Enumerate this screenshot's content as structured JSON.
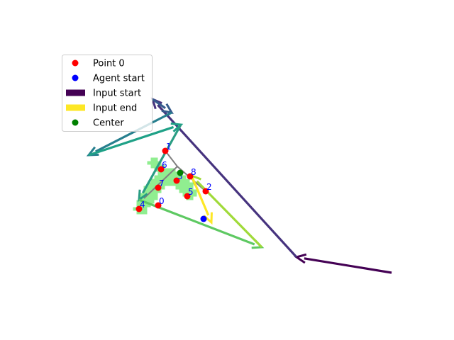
{
  "chart_data": {
    "type": "scatter",
    "title": "",
    "xlabel": "",
    "ylabel": "",
    "axes_visible": false,
    "grid": false,
    "xlim": [
      0,
      64
    ],
    "ylim": [
      48,
      0
    ],
    "legend": {
      "placement": "upper-left",
      "entries": [
        {
          "label": "Point 0",
          "kind": "marker",
          "color": "#ff0000"
        },
        {
          "label": "Agent start",
          "kind": "marker",
          "color": "#0000ff"
        },
        {
          "label": "Input start",
          "kind": "patch",
          "color": "#440154"
        },
        {
          "label": "Input end",
          "kind": "patch",
          "color": "#fde725"
        },
        {
          "label": "Center",
          "kind": "marker",
          "color": "#008000"
        }
      ]
    },
    "region": {
      "color": "#90ee90",
      "cells": [
        [
          21.5,
          22.5
        ],
        [
          22,
          22.5
        ],
        [
          21,
          23
        ],
        [
          21.5,
          23
        ],
        [
          22,
          23
        ],
        [
          22.5,
          23
        ],
        [
          21.5,
          23.5
        ],
        [
          22,
          23.5
        ],
        [
          22.5,
          23.5
        ],
        [
          23,
          23.5
        ],
        [
          22,
          24
        ],
        [
          22.5,
          24
        ],
        [
          23,
          24
        ],
        [
          23.5,
          24
        ],
        [
          24,
          24
        ],
        [
          24.5,
          24
        ],
        [
          22.5,
          24.5
        ],
        [
          23,
          24.5
        ],
        [
          23.5,
          24.5
        ],
        [
          24,
          24.5
        ],
        [
          24.5,
          24.5
        ],
        [
          25,
          24.5
        ],
        [
          25.5,
          24.5
        ],
        [
          22,
          25
        ],
        [
          22.5,
          25
        ],
        [
          23,
          25
        ],
        [
          23.5,
          25
        ],
        [
          24,
          25
        ],
        [
          24.5,
          25
        ],
        [
          25,
          25
        ],
        [
          25.5,
          25
        ],
        [
          26,
          25
        ],
        [
          21.5,
          25.5
        ],
        [
          22,
          25.5
        ],
        [
          22.5,
          25.5
        ],
        [
          23,
          25.5
        ],
        [
          23.5,
          25.5
        ],
        [
          24,
          25.5
        ],
        [
          24.5,
          25.5
        ],
        [
          25,
          25.5
        ],
        [
          25.5,
          25.5
        ],
        [
          26,
          25.5
        ],
        [
          26.5,
          25.5
        ],
        [
          21,
          26
        ],
        [
          21.5,
          26
        ],
        [
          22,
          26
        ],
        [
          22.5,
          26
        ],
        [
          23,
          26
        ],
        [
          23.5,
          26
        ],
        [
          24,
          26
        ],
        [
          24.5,
          26
        ],
        [
          25,
          26
        ],
        [
          25.5,
          26
        ],
        [
          26,
          26
        ],
        [
          26.5,
          26
        ],
        [
          27,
          26
        ],
        [
          20.5,
          26.5
        ],
        [
          21,
          26.5
        ],
        [
          21.5,
          26.5
        ],
        [
          22,
          26.5
        ],
        [
          22.5,
          26.5
        ],
        [
          23,
          26.5
        ],
        [
          25,
          26.5
        ],
        [
          25.5,
          26.5
        ],
        [
          26,
          26.5
        ],
        [
          26.5,
          26.5
        ],
        [
          27,
          26.5
        ],
        [
          20.5,
          27
        ],
        [
          21,
          27
        ],
        [
          21.5,
          27
        ],
        [
          22,
          27
        ],
        [
          22.5,
          27
        ],
        [
          25.5,
          27
        ],
        [
          26,
          27
        ],
        [
          26.5,
          27
        ],
        [
          27,
          27
        ],
        [
          27.5,
          27
        ],
        [
          20,
          27.5
        ],
        [
          20.5,
          27.5
        ],
        [
          21,
          27.5
        ],
        [
          21.5,
          27.5
        ],
        [
          22,
          27.5
        ],
        [
          26,
          27.5
        ],
        [
          26.5,
          27.5
        ],
        [
          27,
          27.5
        ],
        [
          27.5,
          27.5
        ],
        [
          20,
          28
        ],
        [
          20.5,
          28
        ],
        [
          21,
          28
        ],
        [
          21.5,
          28
        ],
        [
          22,
          28
        ],
        [
          26.5,
          28
        ],
        [
          27,
          28
        ],
        [
          19.5,
          28.5
        ],
        [
          20,
          28.5
        ],
        [
          20.5,
          28.5
        ],
        [
          21,
          28.5
        ],
        [
          21.5,
          28.5
        ],
        [
          19.5,
          29
        ],
        [
          20,
          29
        ],
        [
          20.5,
          29
        ],
        [
          21,
          29
        ],
        [
          19,
          29.5
        ],
        [
          19.5,
          29.5
        ],
        [
          20,
          29.5
        ],
        [
          20.5,
          29.5
        ],
        [
          19.5,
          30
        ],
        [
          20,
          30
        ],
        [
          20.5,
          30
        ]
      ]
    },
    "points": [
      {
        "label": "0",
        "x": 22.3,
        "y": 29.0
      },
      {
        "label": "1",
        "x": 23.3,
        "y": 21.3
      },
      {
        "label": "2",
        "x": 29.0,
        "y": 27.0
      },
      {
        "label": "3",
        "x": 24.9,
        "y": 25.5
      },
      {
        "label": "4",
        "x": 19.6,
        "y": 29.5
      },
      {
        "label": "5",
        "x": 26.4,
        "y": 27.7
      },
      {
        "label": "6",
        "x": 22.7,
        "y": 23.9
      },
      {
        "label": "7",
        "x": 22.3,
        "y": 26.5
      },
      {
        "label": "8",
        "x": 26.8,
        "y": 24.9
      }
    ],
    "agent_start": {
      "x": 28.7,
      "y": 30.9
    },
    "center": {
      "x": 25.4,
      "y": 24.4
    },
    "gray_path": [
      [
        23.3,
        21.3
      ],
      [
        25.0,
        23.5
      ],
      [
        20.3,
        28.0
      ]
    ],
    "gray_path_2": [
      [
        25.0,
        23.5
      ],
      [
        29.0,
        27.0
      ]
    ],
    "arrows": [
      {
        "from": [
          55.2,
          38.5
        ],
        "to": [
          41.8,
          36.3
        ],
        "color": "#440154"
      },
      {
        "from": [
          41.8,
          36.3
        ],
        "to": [
          21.5,
          14.0
        ],
        "color": "#46337e"
      },
      {
        "from": [
          21.5,
          14.0
        ],
        "to": [
          24.2,
          15.9
        ],
        "color": "#365c8d"
      },
      {
        "from": [
          24.2,
          15.9
        ],
        "to": [
          12.5,
          21.9
        ],
        "color": "#277f8e"
      },
      {
        "from": [
          12.5,
          21.9
        ],
        "to": [
          25.5,
          17.6
        ],
        "color": "#1fa187"
      },
      {
        "from": [
          25.5,
          17.6
        ],
        "to": [
          19.6,
          28.2
        ],
        "color": "#2a9d84"
      },
      {
        "from": [
          19.6,
          28.2
        ],
        "to": [
          36.9,
          34.9
        ],
        "color": "#5ec962"
      },
      {
        "from": [
          36.9,
          34.9
        ],
        "to": [
          27.0,
          24.8
        ],
        "color": "#a0da39"
      },
      {
        "from": [
          27.0,
          24.8
        ],
        "to": [
          29.8,
          31.4
        ],
        "color": "#fde725"
      }
    ]
  }
}
